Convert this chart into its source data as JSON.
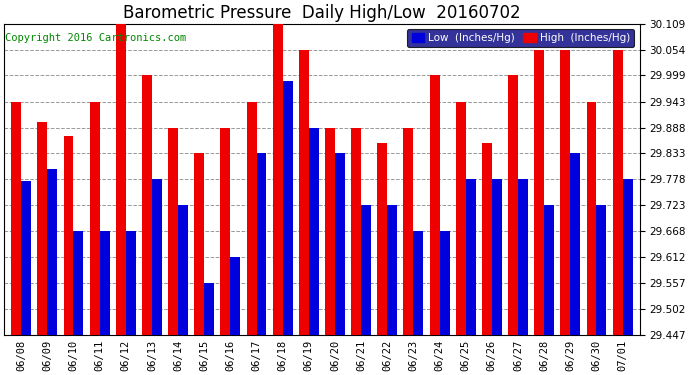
{
  "title": "Barometric Pressure  Daily High/Low  20160702",
  "copyright": "Copyright 2016 Cartronics.com",
  "legend_low": "Low  (Inches/Hg)",
  "legend_high": "High  (Inches/Hg)",
  "dates": [
    "06/08",
    "06/09",
    "06/10",
    "06/11",
    "06/12",
    "06/13",
    "06/14",
    "06/15",
    "06/16",
    "06/17",
    "06/18",
    "06/19",
    "06/20",
    "06/21",
    "06/22",
    "06/23",
    "06/24",
    "06/25",
    "06/26",
    "06/27",
    "06/28",
    "06/29",
    "06/30",
    "07/01"
  ],
  "low": [
    29.775,
    29.8,
    29.668,
    29.668,
    29.668,
    29.778,
    29.724,
    29.557,
    29.612,
    29.833,
    29.988,
    29.888,
    29.833,
    29.723,
    29.723,
    29.668,
    29.668,
    29.778,
    29.778,
    29.778,
    29.723,
    29.833,
    29.723,
    29.778
  ],
  "high": [
    29.943,
    29.9,
    29.87,
    29.943,
    30.109,
    29.999,
    29.888,
    29.833,
    29.888,
    29.943,
    30.109,
    30.054,
    29.888,
    29.888,
    29.855,
    29.888,
    29.999,
    29.943,
    29.855,
    29.999,
    30.054,
    30.054,
    29.943,
    30.054
  ],
  "ymin": 29.447,
  "ymax": 30.109,
  "yticks": [
    29.447,
    29.502,
    29.557,
    29.612,
    29.668,
    29.723,
    29.778,
    29.833,
    29.888,
    29.943,
    29.999,
    30.054,
    30.109
  ],
  "low_color": "#0000dd",
  "high_color": "#ee0000",
  "bg_color": "#ffffff",
  "grid_color": "#999999",
  "bar_width": 0.38,
  "title_fontsize": 12,
  "copyright_fontsize": 7.5,
  "tick_fontsize": 7.5,
  "legend_fontsize": 7.5,
  "legend_bg": "#000080"
}
